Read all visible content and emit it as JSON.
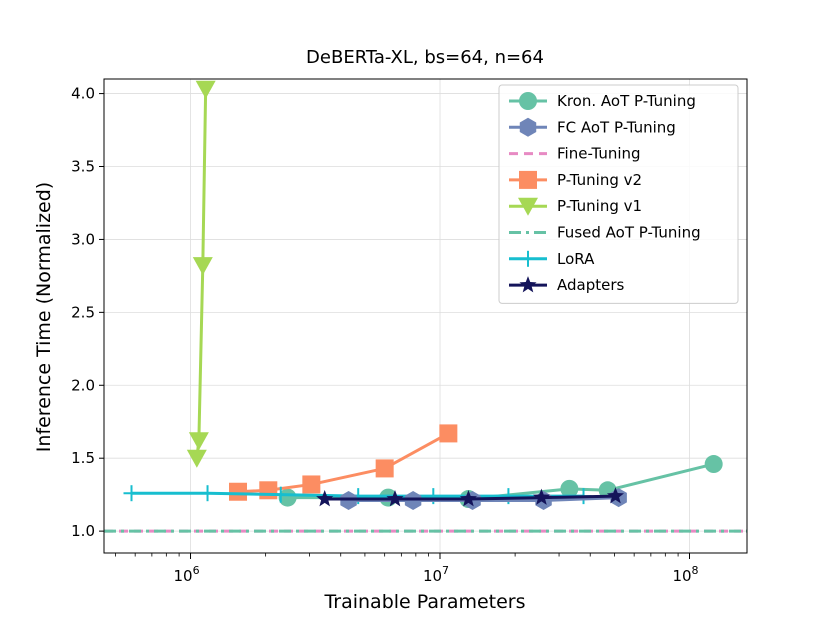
{
  "chart_data": {
    "type": "line",
    "title": "DeBERTa-XL, bs=64, n=64",
    "xlabel": "Trainable Parameters",
    "ylabel": "Inference Time (Normalized)",
    "xscale": "log",
    "xlim": [
      450000,
      170000000
    ],
    "ylim": [
      0.85,
      4.1
    ],
    "grid": true,
    "legend_position": "top-right",
    "x_ticks": [
      {
        "value": 1000000,
        "base": "10",
        "exp": "6"
      },
      {
        "value": 10000000,
        "base": "10",
        "exp": "7"
      },
      {
        "value": 100000000,
        "base": "10",
        "exp": "8"
      }
    ],
    "y_ticks": [
      "1.0",
      "1.5",
      "2.0",
      "2.5",
      "3.0",
      "3.5",
      "4.0"
    ],
    "series": [
      {
        "name": "Kron. AoT P-Tuning",
        "color": "#66c2a5",
        "marker": "circle",
        "dash": "solid",
        "points": [
          [
            2450000,
            1.23
          ],
          [
            6200000,
            1.23
          ],
          [
            13000000,
            1.22
          ],
          [
            33000000,
            1.29
          ],
          [
            47000000,
            1.28
          ],
          [
            125000000,
            1.46
          ]
        ]
      },
      {
        "name": "FC AoT P-Tuning",
        "color": "#6f85b8",
        "marker": "hexagon",
        "dash": "solid",
        "points": [
          [
            4300000,
            1.21
          ],
          [
            7800000,
            1.21
          ],
          [
            13500000,
            1.21
          ],
          [
            26000000,
            1.21
          ],
          [
            52000000,
            1.23
          ]
        ]
      },
      {
        "name": "Fine-Tuning",
        "color": "#e78ac3",
        "marker": "none",
        "dash": "dashed",
        "points": [
          [
            450000,
            1.0
          ],
          [
            170000000,
            1.0
          ]
        ]
      },
      {
        "name": "P-Tuning v2",
        "color": "#fc8d62",
        "marker": "square",
        "dash": "solid",
        "points": [
          [
            1550000,
            1.27
          ],
          [
            2050000,
            1.28
          ],
          [
            3050000,
            1.32
          ],
          [
            6000000,
            1.43
          ],
          [
            10800000,
            1.67
          ]
        ]
      },
      {
        "name": "P-Tuning v1",
        "color": "#a6d854",
        "marker": "triangle-down",
        "dash": "solid",
        "points": [
          [
            1060000,
            1.5
          ],
          [
            1080000,
            1.62
          ],
          [
            1120000,
            2.82
          ],
          [
            1150000,
            4.03
          ]
        ]
      },
      {
        "name": "Fused AoT P-Tuning",
        "color": "#66c2a5",
        "marker": "none",
        "dash": "dashdot",
        "points": [
          [
            450000,
            1.0
          ],
          [
            170000000,
            1.0
          ]
        ]
      },
      {
        "name": "LoRA",
        "color": "#17becf",
        "marker": "plus",
        "dash": "solid",
        "points": [
          [
            580000,
            1.26
          ],
          [
            1170000,
            1.26
          ],
          [
            2300000,
            1.25
          ],
          [
            4700000,
            1.24
          ],
          [
            9400000,
            1.24
          ],
          [
            18800000,
            1.24
          ],
          [
            37600000,
            1.24
          ]
        ]
      },
      {
        "name": "Adapters",
        "color": "#14145a",
        "marker": "star",
        "dash": "solid",
        "points": [
          [
            3450000,
            1.22
          ],
          [
            6600000,
            1.22
          ],
          [
            13000000,
            1.22
          ],
          [
            25500000,
            1.23
          ],
          [
            50500000,
            1.24
          ]
        ]
      }
    ]
  }
}
